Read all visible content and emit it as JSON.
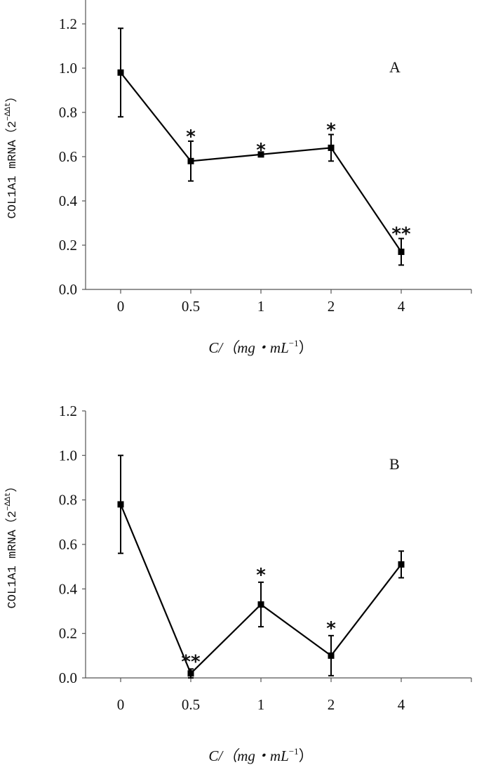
{
  "chart_data": [
    {
      "type": "line",
      "panel_label": "A",
      "categories": [
        "0",
        "0.5",
        "1",
        "2",
        "4"
      ],
      "values": [
        0.98,
        0.58,
        0.61,
        0.64,
        0.17
      ],
      "errors": [
        0.2,
        0.09,
        0.0,
        0.06,
        0.06
      ],
      "annotations": [
        "",
        "*",
        "*",
        "*",
        "**"
      ],
      "yticks": [
        "0.0",
        "0.2",
        "0.4",
        "0.6",
        "0.8",
        "1.0",
        "1.2"
      ],
      "ylim": [
        0,
        1.3
      ],
      "ylabel": "COL1A1 mRNA（2",
      "ylabel_sup": "−ΔΔt",
      "ylabel_close": "）",
      "xlabel": "C/（mg・mL",
      "xlabel_sup": "−1",
      "xlabel_close": "）",
      "grid": false
    },
    {
      "type": "line",
      "panel_label": "B",
      "categories": [
        "0",
        "0.5",
        "1",
        "2",
        "4"
      ],
      "values": [
        0.78,
        0.02,
        0.33,
        0.1,
        0.51
      ],
      "errors": [
        0.22,
        0.02,
        0.1,
        0.09,
        0.06
      ],
      "annotations": [
        "",
        "**",
        "*",
        "*",
        ""
      ],
      "yticks": [
        "0.0",
        "0.2",
        "0.4",
        "0.6",
        "0.8",
        "1.0",
        "1.2"
      ],
      "ylim": [
        0,
        1.2
      ],
      "ylabel": "COL1A1 mRNA（2",
      "ylabel_sup": "−ΔΔt",
      "ylabel_close": "）",
      "xlabel": "C/（mg・mL",
      "xlabel_sup": "−1",
      "xlabel_close": "）",
      "grid": false
    }
  ]
}
